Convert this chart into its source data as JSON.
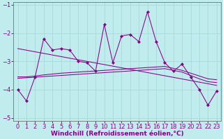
{
  "title": "",
  "xlabel": "Windchill (Refroidissement éolien,°C)",
  "bg_color": "#c0ecee",
  "grid_color": "#a8d8da",
  "line_color": "#880088",
  "x": [
    0,
    1,
    2,
    3,
    4,
    5,
    6,
    7,
    8,
    9,
    10,
    11,
    12,
    13,
    14,
    15,
    16,
    17,
    18,
    19,
    20,
    21,
    22,
    23
  ],
  "series1": [
    -4.0,
    -4.4,
    -3.55,
    -2.2,
    -2.6,
    -2.55,
    -2.6,
    -3.0,
    -3.05,
    -3.35,
    -1.7,
    -3.05,
    -2.1,
    -2.05,
    -2.3,
    -1.25,
    -2.3,
    -3.05,
    -3.35,
    -3.1,
    -3.55,
    -4.0,
    -4.55,
    -4.05
  ],
  "trend_x": [
    0,
    23
  ],
  "trend_y": [
    -2.55,
    -3.85
  ],
  "smooth1": [
    -3.55,
    -3.55,
    -3.52,
    -3.48,
    -3.45,
    -3.42,
    -3.4,
    -3.38,
    -3.36,
    -3.34,
    -3.32,
    -3.3,
    -3.28,
    -3.26,
    -3.24,
    -3.22,
    -3.2,
    -3.18,
    -3.25,
    -3.32,
    -3.42,
    -3.52,
    -3.62,
    -3.65
  ],
  "smooth2": [
    -3.6,
    -3.58,
    -3.56,
    -3.54,
    -3.52,
    -3.5,
    -3.48,
    -3.46,
    -3.44,
    -3.42,
    -3.4,
    -3.38,
    -3.36,
    -3.34,
    -3.32,
    -3.3,
    -3.28,
    -3.26,
    -3.32,
    -3.38,
    -3.5,
    -3.62,
    -3.72,
    -3.75
  ],
  "ylim": [
    -5.1,
    -0.9
  ],
  "xlim": [
    -0.5,
    23.5
  ],
  "yticks": [
    -5,
    -4,
    -3,
    -2,
    -1
  ],
  "xticks": [
    0,
    1,
    2,
    3,
    4,
    5,
    6,
    7,
    8,
    9,
    10,
    11,
    12,
    13,
    14,
    15,
    16,
    17,
    18,
    19,
    20,
    21,
    22,
    23
  ],
  "xlabel_fontsize": 6.5,
  "tick_fontsize": 6.0,
  "markersize": 2.2,
  "linewidth": 0.75
}
